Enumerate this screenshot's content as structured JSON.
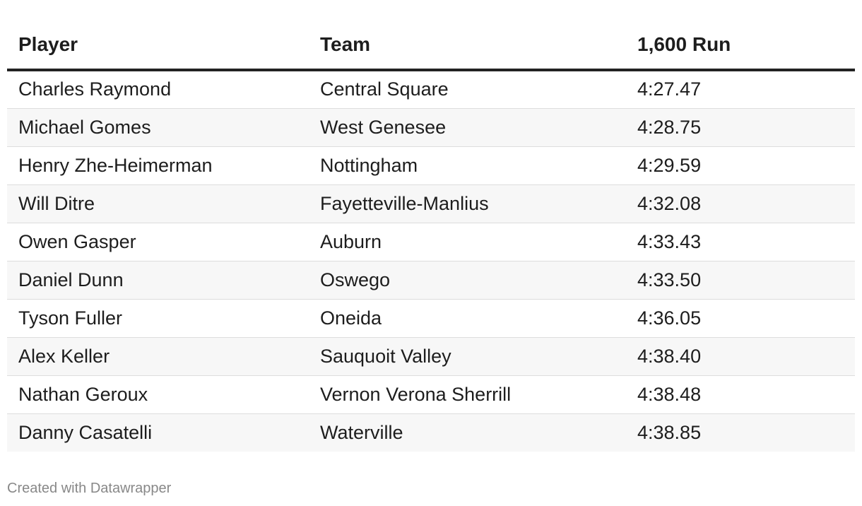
{
  "table": {
    "header": [
      "Player",
      "Team",
      "1,600 Run"
    ],
    "rows": [
      [
        "Charles Raymond",
        "Central Square",
        "4:27.47"
      ],
      [
        "Michael Gomes",
        "West Genesee",
        "4:28.75"
      ],
      [
        "Henry Zhe-Heimerman",
        "Nottingham",
        "4:29.59"
      ],
      [
        "Will Ditre",
        "Fayetteville-Manlius",
        "4:32.08"
      ],
      [
        "Owen Gasper",
        "Auburn",
        "4:33.43"
      ],
      [
        "Daniel Dunn",
        "Oswego",
        "4:33.50"
      ],
      [
        "Tyson Fuller",
        "Oneida",
        "4:36.05"
      ],
      [
        "Alex Keller",
        "Sauquoit Valley",
        "4:38.40"
      ],
      [
        "Nathan Geroux",
        "Vernon Verona Sherrill",
        "4:38.48"
      ],
      [
        "Danny Casatelli",
        "Waterville",
        "4:38.85"
      ]
    ]
  },
  "footer": {
    "credit": "Created with Datawrapper"
  }
}
